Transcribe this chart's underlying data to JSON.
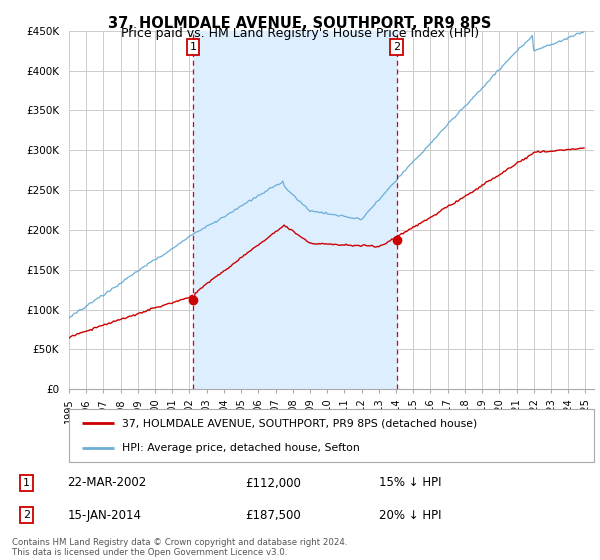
{
  "title": "37, HOLMDALE AVENUE, SOUTHPORT, PR9 8PS",
  "subtitle": "Price paid vs. HM Land Registry's House Price Index (HPI)",
  "ylim": [
    0,
    450000
  ],
  "yticks": [
    0,
    50000,
    100000,
    150000,
    200000,
    250000,
    300000,
    350000,
    400000,
    450000
  ],
  "ytick_labels": [
    "£0",
    "£50K",
    "£100K",
    "£150K",
    "£200K",
    "£250K",
    "£300K",
    "£350K",
    "£400K",
    "£450K"
  ],
  "sale1_year": 2002.21,
  "sale1_price": 112000,
  "sale2_year": 2014.04,
  "sale2_price": 187500,
  "hpi_color": "#6baed6",
  "hpi_shade_color": "#ddeeff",
  "price_color": "#cc0000",
  "vline_color": "#dd0000",
  "legend_line1": "37, HOLMDALE AVENUE, SOUTHPORT, PR9 8PS (detached house)",
  "legend_line2": "HPI: Average price, detached house, Sefton",
  "table_row1": [
    "1",
    "22-MAR-2002",
    "£112,000",
    "15% ↓ HPI"
  ],
  "table_row2": [
    "2",
    "15-JAN-2014",
    "£187,500",
    "20% ↓ HPI"
  ],
  "footnote": "Contains HM Land Registry data © Crown copyright and database right 2024.\nThis data is licensed under the Open Government Licence v3.0.",
  "background_color": "#ffffff",
  "grid_color": "#cccccc",
  "title_fontsize": 10.5,
  "subtitle_fontsize": 9
}
